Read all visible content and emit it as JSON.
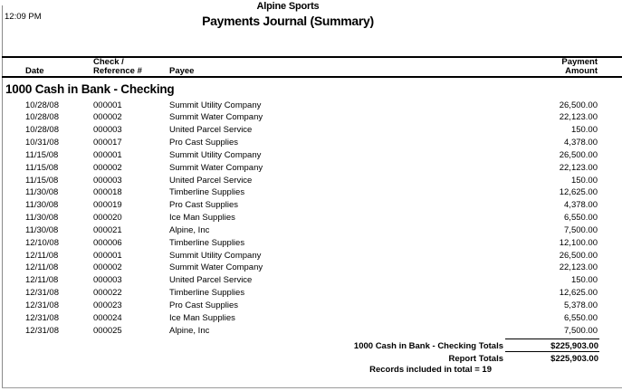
{
  "page": {
    "time": "12:09 PM",
    "company": "Alpine Sports",
    "report_title": "Payments Journal (Summary)"
  },
  "table": {
    "columns": {
      "date": "Date",
      "ref_line1": "Check /",
      "ref_line2": "Reference #",
      "payee": "Payee",
      "amount_line1": "Payment",
      "amount_line2": "Amount"
    },
    "section": "1000 Cash in Bank - Checking",
    "rows": [
      {
        "date": "10/28/08",
        "ref": "000001",
        "payee": "Summit Utility Company",
        "amount": "26,500.00"
      },
      {
        "date": "10/28/08",
        "ref": "000002",
        "payee": "Summit Water Company",
        "amount": "22,123.00"
      },
      {
        "date": "10/28/08",
        "ref": "000003",
        "payee": "United Parcel Service",
        "amount": "150.00"
      },
      {
        "date": "10/31/08",
        "ref": "000017",
        "payee": "Pro Cast Supplies",
        "amount": "4,378.00"
      },
      {
        "date": "11/15/08",
        "ref": "000001",
        "payee": "Summit Utility Company",
        "amount": "26,500.00"
      },
      {
        "date": "11/15/08",
        "ref": "000002",
        "payee": "Summit Water Company",
        "amount": "22,123.00"
      },
      {
        "date": "11/15/08",
        "ref": "000003",
        "payee": "United Parcel Service",
        "amount": "150.00"
      },
      {
        "date": "11/30/08",
        "ref": "000018",
        "payee": "Timberline Supplies",
        "amount": "12,625.00"
      },
      {
        "date": "11/30/08",
        "ref": "000019",
        "payee": "Pro Cast Supplies",
        "amount": "4,378.00"
      },
      {
        "date": "11/30/08",
        "ref": "000020",
        "payee": "Ice Man Supplies",
        "amount": "6,550.00"
      },
      {
        "date": "11/30/08",
        "ref": "000021",
        "payee": "Alpine, Inc",
        "amount": "7,500.00"
      },
      {
        "date": "12/10/08",
        "ref": "000006",
        "payee": "Timberline Supplies",
        "amount": "12,100.00"
      },
      {
        "date": "12/11/08",
        "ref": "000001",
        "payee": "Summit Utility Company",
        "amount": "26,500.00"
      },
      {
        "date": "12/11/08",
        "ref": "000002",
        "payee": "Summit Water Company",
        "amount": "22,123.00"
      },
      {
        "date": "12/11/08",
        "ref": "000003",
        "payee": "United Parcel Service",
        "amount": "150.00"
      },
      {
        "date": "12/31/08",
        "ref": "000022",
        "payee": "Timberline Supplies",
        "amount": "12,625.00"
      },
      {
        "date": "12/31/08",
        "ref": "000023",
        "payee": "Pro Cast Supplies",
        "amount": "5,378.00"
      },
      {
        "date": "12/31/08",
        "ref": "000024",
        "payee": "Ice Man Supplies",
        "amount": "6,550.00"
      },
      {
        "date": "12/31/08",
        "ref": "000025",
        "payee": "Alpine, Inc",
        "amount": "7,500.00"
      }
    ],
    "totals": [
      {
        "label": "1000 Cash in Bank - Checking Totals",
        "amount": "$225,903.00"
      },
      {
        "label": "Report Totals",
        "amount": "$225,903.00"
      }
    ],
    "records_note": "Records included in total = 19"
  },
  "colors": {
    "rule": "#000000",
    "page_border": "#8a8a8a"
  }
}
